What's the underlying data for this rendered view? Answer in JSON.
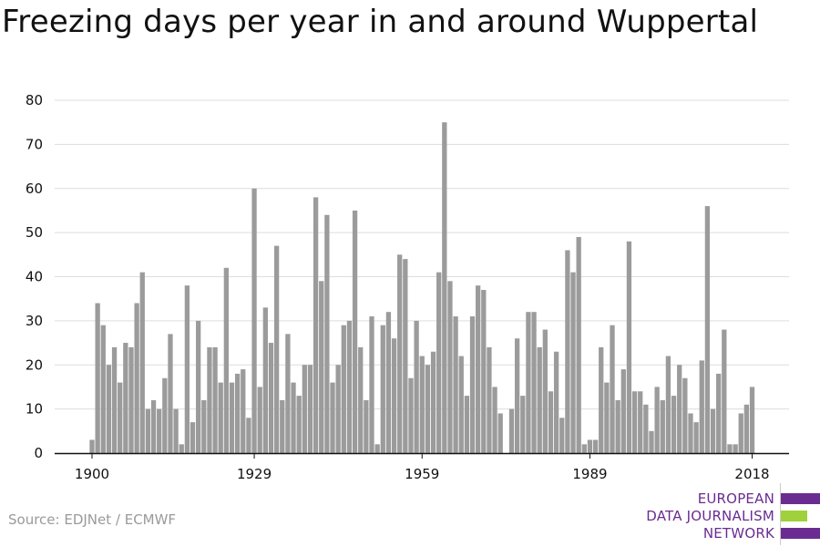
{
  "title": "Freezing days per year in and around Wuppertal",
  "source": "Source: EDJNet / ECMWF",
  "logo": {
    "lines": [
      "EUROPEAN",
      "DATA JOURNALISM",
      "NETWORK"
    ],
    "colors": [
      "#6a2c91",
      "#9fd23a",
      "#6a2c91"
    ]
  },
  "colors": {
    "bar": "#9b9b9b",
    "grid": "#dddddd",
    "axis": "#111111",
    "text": "#111111"
  },
  "chart_data": {
    "type": "bar",
    "x_start": 1900,
    "x": [
      1900,
      1901,
      1902,
      1903,
      1904,
      1905,
      1906,
      1907,
      1908,
      1909,
      1910,
      1911,
      1912,
      1913,
      1914,
      1915,
      1916,
      1917,
      1918,
      1919,
      1920,
      1921,
      1922,
      1923,
      1924,
      1925,
      1926,
      1927,
      1928,
      1929,
      1930,
      1931,
      1932,
      1933,
      1934,
      1935,
      1936,
      1937,
      1938,
      1939,
      1940,
      1941,
      1942,
      1943,
      1944,
      1945,
      1946,
      1947,
      1948,
      1949,
      1950,
      1951,
      1952,
      1953,
      1954,
      1955,
      1956,
      1957,
      1958,
      1959,
      1960,
      1961,
      1962,
      1963,
      1964,
      1965,
      1966,
      1967,
      1968,
      1969,
      1970,
      1971,
      1972,
      1973,
      1974,
      1975,
      1976,
      1977,
      1978,
      1979,
      1980,
      1981,
      1982,
      1983,
      1984,
      1985,
      1986,
      1987,
      1988,
      1989,
      1990,
      1991,
      1992,
      1993,
      1994,
      1995,
      1996,
      1997,
      1998,
      1999,
      2000,
      2001,
      2002,
      2003,
      2004,
      2005,
      2006,
      2007,
      2008,
      2009,
      2010,
      2011,
      2012,
      2013,
      2014,
      2015,
      2016,
      2017,
      2018
    ],
    "values": [
      3,
      34,
      29,
      20,
      24,
      16,
      25,
      24,
      34,
      41,
      10,
      12,
      10,
      17,
      27,
      10,
      2,
      38,
      7,
      30,
      12,
      24,
      24,
      16,
      42,
      16,
      18,
      19,
      8,
      60,
      15,
      33,
      25,
      47,
      12,
      27,
      16,
      13,
      20,
      20,
      58,
      39,
      54,
      16,
      20,
      29,
      30,
      55,
      24,
      12,
      31,
      2,
      29,
      32,
      26,
      45,
      44,
      17,
      30,
      22,
      20,
      23,
      41,
      75,
      39,
      31,
      22,
      13,
      31,
      38,
      37,
      24,
      15,
      9,
      0,
      10,
      26,
      13,
      32,
      32,
      24,
      28,
      14,
      23,
      8,
      46,
      41,
      49,
      2,
      3,
      3,
      24,
      16,
      29,
      12,
      19,
      48,
      14,
      14,
      11,
      5,
      15,
      12,
      22,
      13,
      20,
      17,
      9,
      7,
      21,
      56,
      10,
      18,
      28,
      2,
      2,
      9,
      11,
      15
    ],
    "title": "Freezing days per year in and around Wuppertal",
    "xlabel": "",
    "ylabel": "",
    "ylim": [
      0,
      80
    ],
    "yticks": [
      0,
      10,
      20,
      30,
      40,
      50,
      60,
      70,
      80
    ],
    "xticks": [
      1900,
      1929,
      1959,
      1989,
      2018
    ],
    "grid": true,
    "legend": "none"
  }
}
